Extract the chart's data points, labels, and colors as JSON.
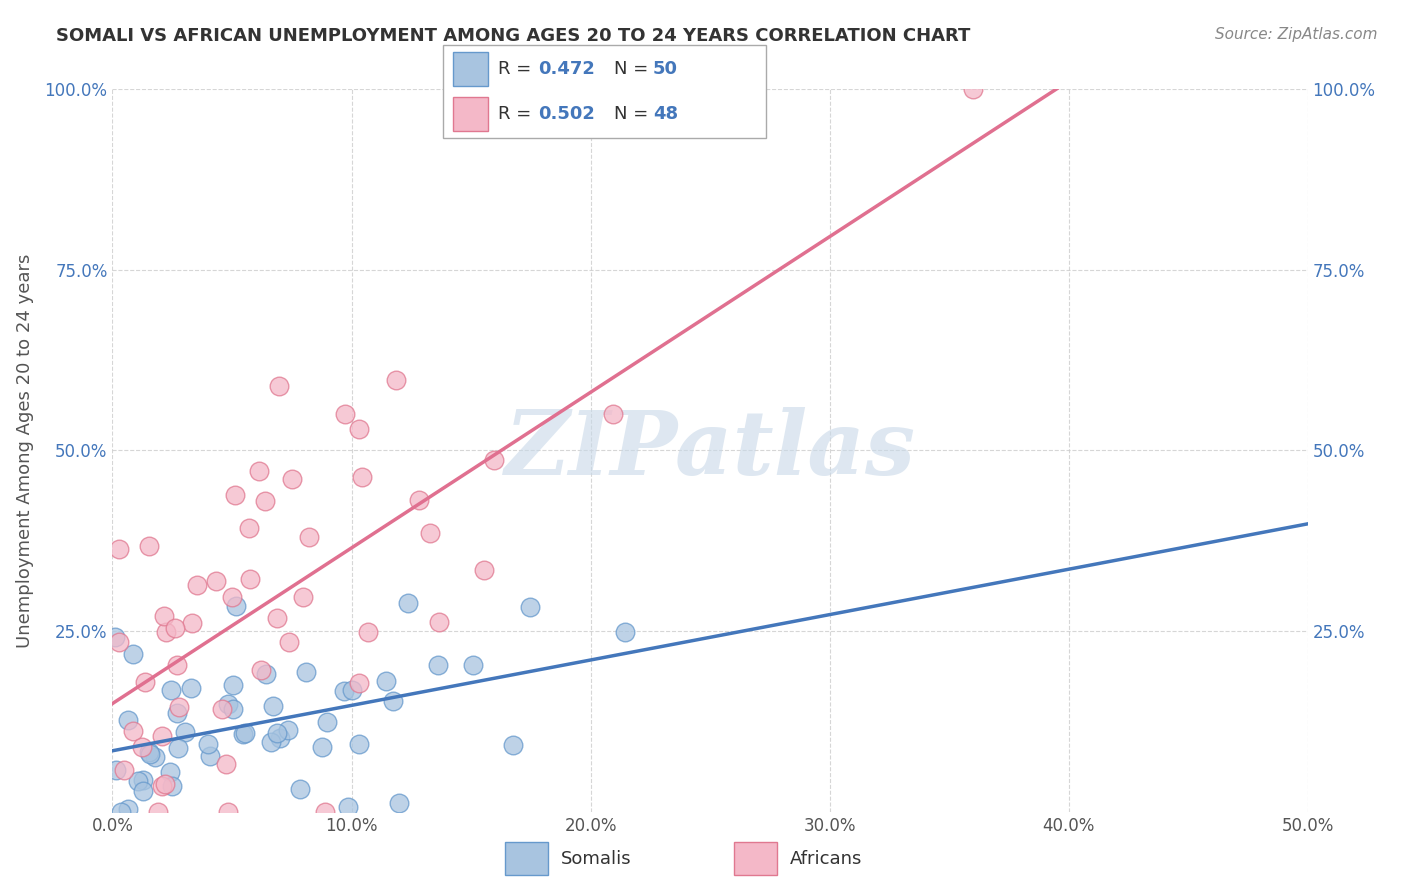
{
  "title": "SOMALI VS AFRICAN UNEMPLOYMENT AMONG AGES 20 TO 24 YEARS CORRELATION CHART",
  "source": "Source: ZipAtlas.com",
  "ylabel": "Unemployment Among Ages 20 to 24 years",
  "xlim": [
    0.0,
    0.5
  ],
  "ylim": [
    0.0,
    1.0
  ],
  "xtick_labels": [
    "0.0%",
    "10.0%",
    "20.0%",
    "30.0%",
    "40.0%",
    "50.0%"
  ],
  "xtick_vals": [
    0.0,
    0.1,
    0.2,
    0.3,
    0.4,
    0.5
  ],
  "ytick_labels": [
    "25.0%",
    "50.0%",
    "75.0%",
    "100.0%"
  ],
  "ytick_vals": [
    0.25,
    0.5,
    0.75,
    1.0
  ],
  "somali_R": 0.472,
  "somali_N": 50,
  "african_R": 0.502,
  "african_N": 48,
  "somali_color": "#a8c4e0",
  "somali_edge": "#6699cc",
  "somali_line_color": "#4477bb",
  "african_color": "#f4b8c8",
  "african_edge": "#e07890",
  "african_line_color": "#e07090",
  "watermark_color": "#c8d8e8",
  "background_color": "#ffffff",
  "grid_color": "#cccccc",
  "blue_text": "#4477bb",
  "dark_text": "#333333",
  "gray_text": "#888888"
}
